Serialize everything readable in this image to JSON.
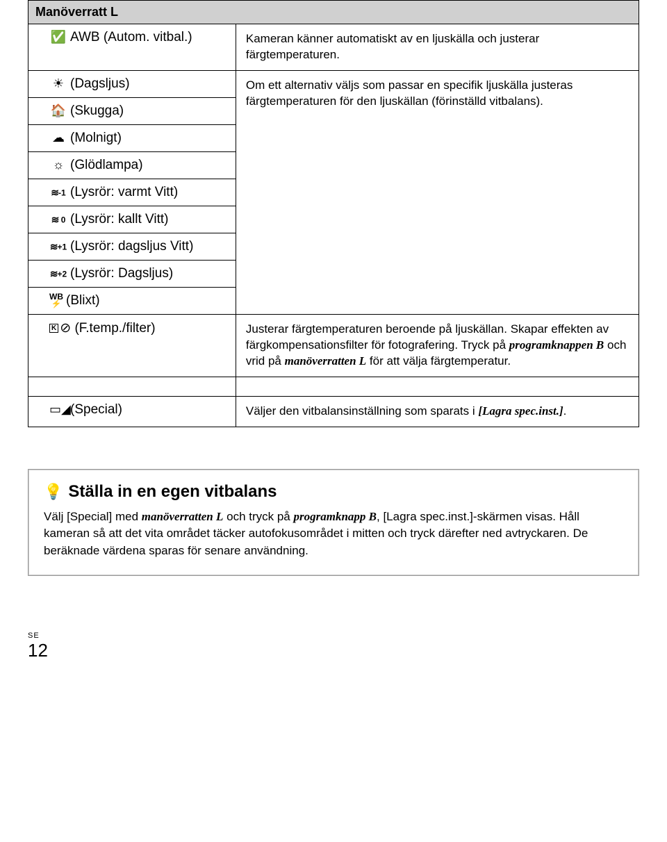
{
  "table": {
    "header": "Manöverratt L",
    "rows": [
      {
        "icon": "✔",
        "label": "AWB (Autom. vitbal.)",
        "desc": "Kameran känner automatiskt av en ljuskälla och justerar färgtemperaturen."
      },
      {
        "icon": "☀",
        "label": "(Dagsljus)"
      },
      {
        "icon": "⌂",
        "label": "(Skugga)"
      },
      {
        "icon": "☁",
        "label": "(Molnigt)"
      },
      {
        "icon": "☼",
        "label": "(Glödlampa)"
      },
      {
        "icon": "≋-1",
        "label": "(Lysrör: varmt Vitt)"
      },
      {
        "icon": "≋ 0",
        "label": "(Lysrör: kallt Vitt)"
      },
      {
        "icon": "≋+1",
        "label": "(Lysrör: dagsljus Vitt)"
      },
      {
        "icon": "≋+2",
        "label": "(Lysrör: Dagsljus)"
      },
      {
        "icon": "WB",
        "label": "(Blixt)"
      },
      {
        "icon": "K",
        "label": "(F.temp./filter)"
      },
      {
        "icon": "▭",
        "label": "(Special)"
      }
    ],
    "group_desc": "Om ett alternativ väljs som passar en specifik ljuskälla justeras färgtemperaturen för den ljuskällan (förinställd vitbalans).",
    "ftemp_desc_1": "Justerar färgtemperaturen beroende på ljuskällan. Skapar effekten av färg­kompensationsfilter för fotografering. Tryck på ",
    "ftemp_desc_b": "programknappen B",
    "ftemp_desc_2": " och vrid på ",
    "ftemp_desc_l": "manöverratten L",
    "ftemp_desc_3": " för att välja färgtemperatur.",
    "special_desc_1": "Väljer den vitbalansinställning som sparats i ",
    "special_desc_key": "[Lagra spec.inst.]",
    "special_desc_2": "."
  },
  "tip": {
    "icon": "☼",
    "title": "Ställa in en egen vitbalans",
    "body_1": "Välj [Special] med ",
    "body_l": "manöverratten L",
    "body_2": " och tryck på ",
    "body_b": "programknapp B",
    "body_3": ", [Lagra spec.inst.]-skärmen visas. Håll kameran så att det vita området täcker autofokusområdet i mitten och tryck därefter ned avtryckaren. De beräknade värdena sparas för senare användning."
  },
  "footer": {
    "lang": "SE",
    "page": "12"
  },
  "colors": {
    "header_bg": "#d0d0d0",
    "border": "#000000",
    "text": "#000000",
    "tip_border": "#999999"
  }
}
